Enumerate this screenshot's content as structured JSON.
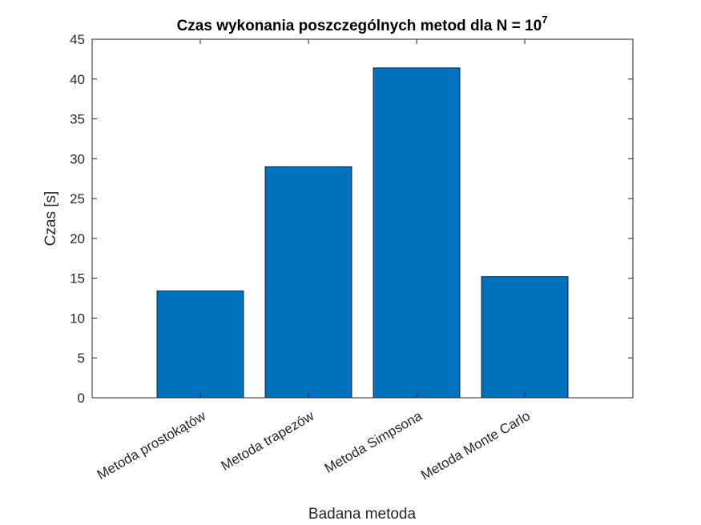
{
  "chart_data": {
    "type": "bar",
    "title": "Czas wykonania poszczególnych metod dla N = 10",
    "title_superscript": "7",
    "xlabel": "Badana metoda",
    "ylabel": "Czas [s]",
    "categories": [
      "Metoda prostokątów",
      "Metoda trapezów",
      "Metoda Simpsona",
      "Metoda Monte Carlo"
    ],
    "values": [
      13.4,
      29.0,
      41.4,
      15.2
    ],
    "ylim": [
      0,
      45
    ],
    "yticks": [
      0,
      5,
      10,
      15,
      20,
      25,
      30,
      35,
      40,
      45
    ],
    "ytick_labels": [
      "0",
      "5",
      "10",
      "15",
      "20",
      "25",
      "30",
      "35",
      "40",
      "45"
    ],
    "xlim": [
      0,
      5
    ],
    "bar_color": "#0072BD",
    "bar_edge_color": "#000000",
    "grid": false,
    "box": true
  }
}
